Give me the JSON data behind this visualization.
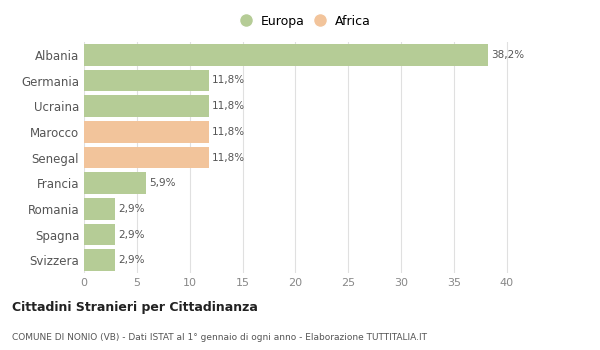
{
  "categories": [
    "Albania",
    "Germania",
    "Ucraina",
    "Marocco",
    "Senegal",
    "Francia",
    "Romania",
    "Spagna",
    "Svizzera"
  ],
  "values": [
    38.2,
    11.8,
    11.8,
    11.8,
    11.8,
    5.9,
    2.9,
    2.9,
    2.9
  ],
  "labels": [
    "38,2%",
    "11,8%",
    "11,8%",
    "11,8%",
    "11,8%",
    "5,9%",
    "2,9%",
    "2,9%",
    "2,9%"
  ],
  "colors": [
    "#b5cc96",
    "#b5cc96",
    "#b5cc96",
    "#f2c49b",
    "#f2c49b",
    "#b5cc96",
    "#b5cc96",
    "#b5cc96",
    "#b5cc96"
  ],
  "legend_europa_color": "#b5cc96",
  "legend_africa_color": "#f2c49b",
  "xlim": [
    0,
    42
  ],
  "xticks": [
    0,
    5,
    10,
    15,
    20,
    25,
    30,
    35,
    40
  ],
  "title": "Cittadini Stranieri per Cittadinanza",
  "subtitle": "COMUNE DI NONIO (VB) - Dati ISTAT al 1° gennaio di ogni anno - Elaborazione TUTTITALIA.IT",
  "background_color": "#ffffff",
  "grid_color": "#e0e0e0",
  "bar_height": 0.85
}
